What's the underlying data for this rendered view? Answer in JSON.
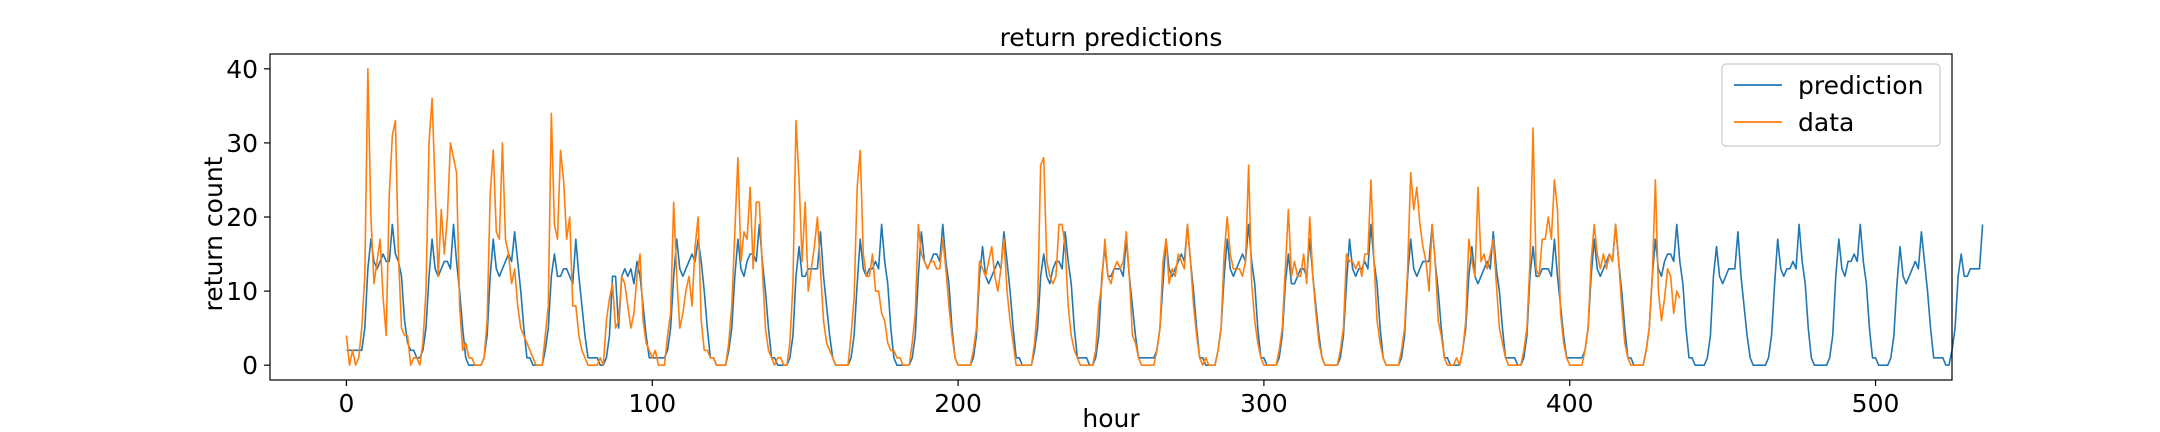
{
  "chart_data": {
    "type": "line",
    "title": "return predictions",
    "xlabel": "hour",
    "ylabel": "return count",
    "xlim": [
      -25,
      525
    ],
    "ylim": [
      -2,
      42
    ],
    "xticks": [
      0,
      100,
      200,
      300,
      400,
      500
    ],
    "yticks": [
      0,
      10,
      20,
      30,
      40
    ],
    "legend_position": "top-right",
    "series": [
      {
        "name": "prediction",
        "color": "#1f77b4",
        "values": [
          2,
          2,
          2,
          2,
          2,
          2,
          5,
          13,
          17,
          14,
          13,
          14,
          15,
          14,
          14,
          19,
          15,
          14,
          12,
          6,
          3,
          2,
          2,
          1,
          1,
          2,
          5,
          12,
          17,
          13,
          12,
          13,
          14,
          14,
          13,
          19,
          14,
          10,
          5,
          1,
          0,
          0,
          0,
          0,
          0,
          1,
          4,
          12,
          17,
          13,
          12,
          13,
          14,
          15,
          14,
          18,
          14,
          10,
          5,
          1,
          1,
          0,
          0,
          0,
          0,
          2,
          5,
          12,
          15,
          12,
          12,
          13,
          13,
          12,
          11,
          17,
          12,
          8,
          4,
          1,
          1,
          1,
          1,
          0,
          0,
          1,
          4,
          12,
          12,
          5,
          12,
          13,
          12,
          13,
          11,
          14,
          12,
          8,
          4,
          1,
          1,
          1,
          1,
          1,
          1,
          2,
          5,
          12,
          17,
          13,
          12,
          13,
          14,
          15,
          14,
          17,
          14,
          10,
          5,
          1,
          1,
          0,
          0,
          0,
          0,
          2,
          5,
          12,
          17,
          13,
          12,
          14,
          15,
          15,
          14,
          19,
          14,
          10,
          5,
          1,
          1,
          0,
          0,
          0,
          0,
          1,
          4,
          12,
          16,
          12,
          12,
          13,
          13,
          13,
          13,
          18,
          12,
          8,
          4,
          1,
          0,
          0,
          0,
          0,
          0,
          1,
          4,
          11,
          17,
          13,
          12,
          13,
          13,
          14,
          13,
          19,
          14,
          11,
          5,
          1,
          0,
          0,
          0,
          0,
          0,
          1,
          4,
          12,
          18,
          14,
          13,
          14,
          15,
          15,
          14,
          19,
          14,
          11,
          5,
          1,
          0,
          0,
          0,
          0,
          0,
          1,
          4,
          12,
          16,
          12,
          11,
          12,
          13,
          14,
          13,
          18,
          14,
          10,
          5,
          1,
          1,
          0,
          0,
          0,
          0,
          2,
          5,
          12,
          15,
          12,
          11,
          13,
          14,
          14,
          13,
          18,
          14,
          11,
          5,
          1,
          1,
          1,
          1,
          0,
          0,
          1,
          4,
          12,
          16,
          12,
          12,
          13,
          13,
          13,
          12,
          17,
          12,
          8,
          4,
          1,
          1,
          1,
          1,
          1,
          1,
          2,
          5,
          11,
          17,
          13,
          12,
          13,
          14,
          15,
          14,
          19,
          14,
          10,
          5,
          1,
          1,
          0,
          0,
          0,
          0,
          2,
          5,
          12,
          17,
          13,
          12,
          13,
          14,
          15,
          14,
          19,
          14,
          11,
          5,
          1,
          1,
          0,
          0,
          0,
          0,
          1,
          4,
          11,
          15,
          11,
          11,
          12,
          13,
          13,
          12,
          17,
          12,
          8,
          4,
          1,
          0,
          0,
          0,
          0,
          0,
          1,
          4,
          11,
          17,
          13,
          12,
          13,
          13,
          14,
          13,
          19,
          14,
          11,
          5,
          1,
          0,
          0,
          0,
          0,
          0,
          1,
          4,
          12,
          17,
          13,
          12,
          13,
          14,
          14,
          14,
          19,
          14,
          10,
          5,
          1,
          1,
          0,
          0,
          0,
          0,
          2,
          5,
          12,
          16,
          12,
          11,
          12,
          13,
          14,
          13,
          18,
          13,
          10,
          5,
          1,
          1,
          1,
          1,
          0,
          0,
          1,
          4,
          12,
          16,
          12,
          12,
          13,
          13,
          13,
          12,
          17,
          12,
          8,
          4,
          1,
          1,
          1,
          1,
          1,
          1,
          2,
          5,
          12,
          17,
          13,
          12,
          13,
          14,
          15,
          14,
          19,
          14,
          10,
          5,
          1,
          1,
          0,
          0,
          0,
          0,
          2,
          5,
          12,
          17,
          13,
          12,
          14,
          15,
          15,
          14,
          19,
          14,
          11,
          5,
          1,
          1,
          0,
          0,
          0,
          0,
          1,
          4,
          12,
          16,
          12,
          11,
          12,
          13,
          13,
          13,
          18,
          12,
          8,
          4,
          1,
          0,
          0,
          0,
          0,
          0,
          1,
          4,
          11,
          17,
          13,
          12,
          13,
          13,
          14,
          13,
          19,
          14,
          11,
          5,
          1,
          0,
          0,
          0,
          0,
          0,
          1,
          4,
          12,
          17,
          13,
          12,
          14,
          14,
          15,
          14,
          19,
          14,
          11,
          5,
          1,
          1,
          0,
          0,
          0,
          0,
          1,
          4,
          11,
          16,
          12,
          11,
          12,
          13,
          14,
          13,
          18,
          14,
          10,
          5,
          1,
          1,
          1,
          1,
          0,
          0,
          2,
          5,
          12,
          15,
          12,
          12,
          13,
          13,
          13,
          13,
          19
        ]
      },
      {
        "name": "data",
        "color": "#ff7f0e",
        "values": [
          4,
          0,
          2,
          0,
          1,
          5,
          12,
          40,
          20,
          11,
          14,
          17,
          9,
          4,
          23,
          31,
          33,
          15,
          5,
          4,
          4,
          0,
          1,
          1,
          0,
          3,
          10,
          30,
          36,
          24,
          12,
          21,
          15,
          20,
          30,
          28,
          26,
          8,
          2,
          3,
          1,
          1,
          0,
          0,
          0,
          1,
          6,
          23,
          29,
          18,
          17,
          30,
          17,
          15,
          11,
          13,
          8,
          5,
          4,
          3,
          2,
          1,
          0,
          0,
          0,
          4,
          8,
          34,
          19,
          17,
          29,
          25,
          17,
          20,
          8,
          8,
          4,
          2,
          1,
          0,
          0,
          0,
          0,
          1,
          0,
          6,
          9,
          11,
          5,
          6,
          12,
          11,
          8,
          5,
          7,
          12,
          15,
          6,
          3,
          2,
          1,
          2,
          0,
          0,
          0,
          4,
          7,
          22,
          12,
          5,
          7,
          10,
          12,
          8,
          16,
          20,
          6,
          2,
          2,
          1,
          1,
          0,
          0,
          0,
          0,
          3,
          8,
          18,
          28,
          14,
          18,
          17,
          24,
          13,
          22,
          22,
          13,
          5,
          2,
          1,
          0,
          1,
          1,
          0,
          0,
          3,
          11,
          33,
          25,
          14,
          22,
          10,
          13,
          16,
          20,
          13,
          6,
          3,
          2,
          1,
          0,
          0,
          0,
          0,
          0,
          4,
          9,
          24,
          29,
          15,
          12,
          12,
          15,
          10,
          10,
          7,
          6,
          3,
          2,
          2,
          1,
          1,
          0,
          0,
          0,
          3,
          7,
          19,
          15,
          14,
          13,
          14,
          14,
          13,
          13,
          17,
          13,
          8,
          4,
          1,
          0,
          0,
          0,
          0,
          0,
          2,
          5,
          14,
          13,
          12,
          14,
          16,
          12,
          10,
          13,
          17,
          10,
          6,
          3,
          0,
          0,
          0,
          0,
          0,
          0,
          3,
          8,
          27,
          28,
          14,
          12,
          11,
          12,
          19,
          19,
          16,
          8,
          4,
          2,
          1,
          0,
          0,
          0,
          0,
          0,
          2,
          8,
          11,
          17,
          12,
          11,
          13,
          14,
          13,
          14,
          18,
          12,
          4,
          3,
          1,
          0,
          0,
          0,
          0,
          0,
          2,
          5,
          14,
          17,
          11,
          13,
          12,
          15,
          14,
          13,
          19,
          14,
          8,
          4,
          1,
          0,
          1,
          0,
          0,
          0,
          2,
          5,
          15,
          20,
          15,
          13,
          13,
          13,
          12,
          14,
          27,
          11,
          6,
          3,
          1,
          0,
          0,
          0,
          0,
          0,
          2,
          5,
          13,
          21,
          12,
          14,
          12,
          12,
          15,
          11,
          20,
          12,
          7,
          3,
          1,
          0,
          0,
          0,
          0,
          0,
          2,
          5,
          15,
          14,
          14,
          13,
          14,
          12,
          15,
          15,
          25,
          14,
          6,
          3,
          1,
          0,
          0,
          0,
          0,
          0,
          2,
          5,
          13,
          26,
          21,
          24,
          19,
          16,
          14,
          10,
          19,
          14,
          6,
          4,
          1,
          0,
          0,
          0,
          1,
          0,
          2,
          6,
          17,
          14,
          12,
          24,
          14,
          15,
          13,
          15,
          17,
          11,
          5,
          3,
          1,
          0,
          0,
          0,
          0,
          0,
          2,
          5,
          14,
          32,
          13,
          12,
          17,
          17,
          20,
          17,
          25,
          21,
          7,
          3,
          1,
          0,
          0,
          0,
          0,
          0,
          2,
          5,
          14,
          19,
          15,
          13,
          15,
          13,
          15,
          14,
          19,
          14,
          8,
          3,
          1,
          0,
          0,
          0,
          0,
          0,
          2,
          5,
          12,
          25,
          10,
          6,
          9,
          13,
          12,
          7,
          10,
          9
        ]
      }
    ]
  }
}
